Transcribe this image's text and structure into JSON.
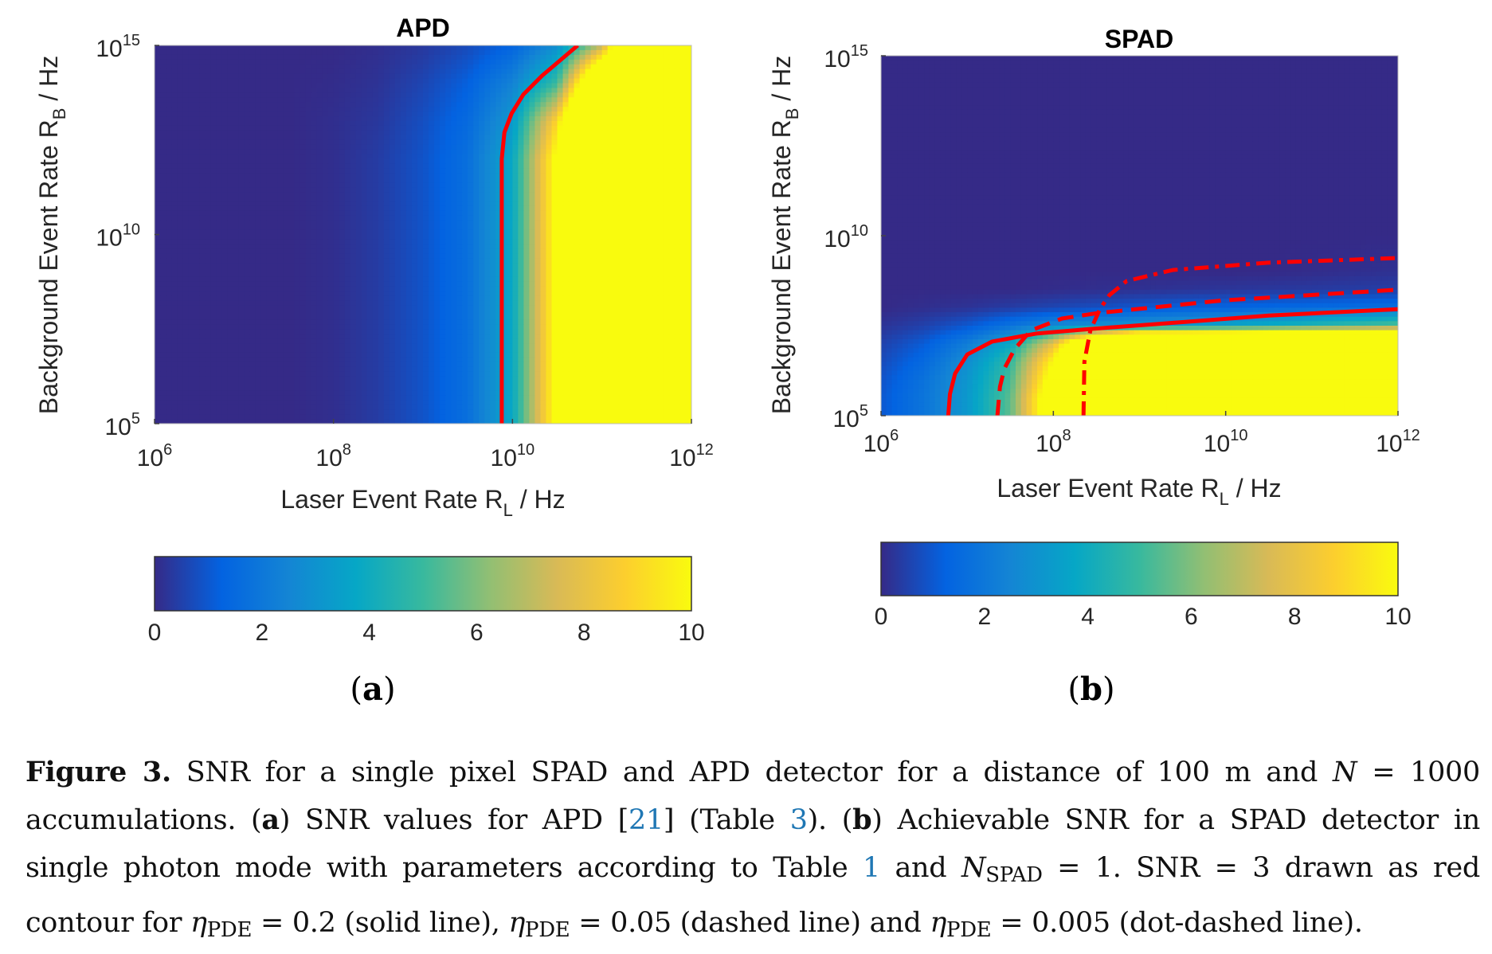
{
  "colormap": [
    "#352A87",
    "#0363E1",
    "#1485D4",
    "#06A7C6",
    "#38B99E",
    "#92BF73",
    "#D9BA56",
    "#FCCE2E",
    "#F9FB0E"
  ],
  "contour_color": "#FF0000",
  "chart_data": [
    {
      "type": "heatmap",
      "title": "APD",
      "panel_label": "a",
      "xlabel": {
        "main": "Laser Event Rate R",
        "sub": "L",
        "tail": " / Hz"
      },
      "ylabel": {
        "main": "Background Event Rate R",
        "sub": "B",
        "tail": " / Hz"
      },
      "x_scale": "log",
      "y_scale": "log",
      "xlim": [
        1000000.0,
        1000000000000.0
      ],
      "ylim": [
        100000.0,
        1000000000000000.0
      ],
      "x_ticks": [
        {
          "base": "10",
          "exp": "6",
          "value": 1000000.0
        },
        {
          "base": "10",
          "exp": "8",
          "value": 100000000.0
        },
        {
          "base": "10",
          "exp": "10",
          "value": 10000000000.0
        },
        {
          "base": "10",
          "exp": "12",
          "value": 1000000000000.0
        }
      ],
      "y_ticks": [
        {
          "base": "10",
          "exp": "5",
          "value": 100000.0
        },
        {
          "base": "10",
          "exp": "10",
          "value": 10000000000.0
        },
        {
          "base": "10",
          "exp": "15",
          "value": 1000000000000000.0
        }
      ],
      "colorbar": {
        "range": [
          0,
          10
        ],
        "ticks": [
          "0",
          "2",
          "4",
          "6",
          "8",
          "10"
        ],
        "placement": "bottom"
      },
      "grid_x": [
        1000000.0,
        3160000.0,
        10000000.0,
        31600000.0,
        100000000.0,
        316000000.0,
        1000000000.0,
        3160000000.0,
        10000000000.0,
        31600000000.0,
        100000000000.0,
        316000000000.0,
        1000000000000.0
      ],
      "grid_y": [
        100000.0,
        1000000.0,
        10000000.0,
        100000000.0,
        1000000000.0,
        10000000000.0,
        100000000000.0,
        1000000000000.0,
        10000000000000.0,
        100000000000000.0,
        1000000000000000.0
      ],
      "snr": [
        [
          0,
          0,
          0,
          0,
          0.1,
          0.4,
          0.9,
          1.7,
          3.8,
          10.5,
          20,
          20,
          20
        ],
        [
          0,
          0,
          0,
          0,
          0.1,
          0.4,
          0.9,
          1.7,
          3.8,
          10.5,
          20,
          20,
          20
        ],
        [
          0,
          0,
          0,
          0,
          0.1,
          0.4,
          0.9,
          1.7,
          3.8,
          10.5,
          20,
          20,
          20
        ],
        [
          0,
          0,
          0,
          0,
          0.1,
          0.4,
          0.9,
          1.7,
          3.8,
          10.5,
          20,
          20,
          20
        ],
        [
          0,
          0,
          0,
          0,
          0.1,
          0.4,
          0.9,
          1.7,
          3.8,
          10.5,
          20,
          20,
          20
        ],
        [
          0,
          0,
          0,
          0,
          0.1,
          0.4,
          0.9,
          1.7,
          3.8,
          10.5,
          20,
          20,
          20
        ],
        [
          0,
          0,
          0,
          0,
          0.1,
          0.4,
          0.9,
          1.7,
          3.8,
          10.5,
          20,
          20,
          20
        ],
        [
          0,
          0,
          0,
          0,
          0.1,
          0.4,
          0.9,
          1.7,
          3.8,
          10.5,
          20,
          20,
          20
        ],
        [
          0,
          0,
          0,
          0,
          0.1,
          0.3,
          0.8,
          1.5,
          3.2,
          9,
          20,
          20,
          20
        ],
        [
          0,
          0,
          0,
          0,
          0.05,
          0.2,
          0.6,
          1.2,
          2.4,
          5,
          15,
          20,
          20
        ],
        [
          0,
          0,
          0,
          0,
          0,
          0.1,
          0.3,
          0.7,
          1.3,
          2.8,
          7,
          20,
          20
        ]
      ],
      "contours": [
        {
          "level": 3,
          "style": "solid",
          "points": [
            [
              7590000000.0,
              100000.0
            ],
            [
              7590000000.0,
              1000000000000.0
            ],
            [
              8130000000.0,
              5010000000000.0
            ],
            [
              9770000000.0,
              15800000000000.0
            ],
            [
              13200000000.0,
              50100000000000.0
            ],
            [
              21400000000.0,
              158000000000000.0
            ],
            [
              53700000000.0,
              1000000000000000.0
            ]
          ]
        }
      ]
    },
    {
      "type": "heatmap",
      "title": "SPAD",
      "panel_label": "b",
      "xlabel": {
        "main": "Laser Event Rate R",
        "sub": "L",
        "tail": " / Hz"
      },
      "ylabel": {
        "main": "Background Event Rate R",
        "sub": "B",
        "tail": " / Hz"
      },
      "x_scale": "log",
      "y_scale": "log",
      "xlim": [
        1000000.0,
        1000000000000.0
      ],
      "ylim": [
        100000.0,
        1000000000000000.0
      ],
      "x_ticks": [
        {
          "base": "10",
          "exp": "6",
          "value": 1000000.0
        },
        {
          "base": "10",
          "exp": "8",
          "value": 100000000.0
        },
        {
          "base": "10",
          "exp": "10",
          "value": 10000000000.0
        },
        {
          "base": "10",
          "exp": "12",
          "value": 1000000000000.0
        }
      ],
      "y_ticks": [
        {
          "base": "10",
          "exp": "5",
          "value": 100000.0
        },
        {
          "base": "10",
          "exp": "10",
          "value": 10000000000.0
        },
        {
          "base": "10",
          "exp": "15",
          "value": 1000000000000000.0
        }
      ],
      "colorbar": {
        "range": [
          0,
          10
        ],
        "ticks": [
          "0",
          "2",
          "4",
          "6",
          "8",
          "10"
        ],
        "placement": "bottom"
      },
      "grid_x": [
        1000000.0,
        3160000.0,
        10000000.0,
        31600000.0,
        100000000.0,
        316000000.0,
        1000000000.0,
        3160000000.0,
        10000000000.0,
        31600000000.0,
        100000000000.0,
        316000000000.0,
        1000000000000.0
      ],
      "grid_y": [
        100000.0,
        316000.0,
        1000000.0,
        3160000.0,
        10000000.0,
        31600000.0,
        100000000.0,
        316000000.0,
        1000000000.0,
        10000000000.0,
        1000000000000000.0
      ],
      "snr": [
        [
          1,
          1.9,
          3.2,
          5.5,
          12,
          20,
          20,
          20,
          20,
          20,
          20,
          20,
          20
        ],
        [
          1,
          1.9,
          3.2,
          5.5,
          12,
          20,
          20,
          20,
          20,
          20,
          20,
          20,
          20
        ],
        [
          0.9,
          1.8,
          3.1,
          5.2,
          11,
          20,
          20,
          20,
          20,
          20,
          20,
          20,
          20
        ],
        [
          0.7,
          1.5,
          2.8,
          4.8,
          10,
          20,
          20,
          20,
          20,
          20,
          20,
          20,
          20
        ],
        [
          0.5,
          1.1,
          2.2,
          3.8,
          8,
          15,
          20,
          20,
          20,
          20,
          20,
          20,
          20
        ],
        [
          0.2,
          0.5,
          1,
          1.8,
          2.6,
          2.9,
          3.1,
          3.3,
          3.6,
          4,
          4.5,
          5,
          5.5
        ],
        [
          0,
          0.1,
          0.2,
          0.4,
          0.6,
          0.8,
          1,
          1.2,
          1.3,
          1.4,
          1.5,
          1.6,
          1.7
        ],
        [
          0,
          0,
          0,
          0,
          0.05,
          0.1,
          0.15,
          0.2,
          0.25,
          0.3,
          0.35,
          0.4,
          0.45
        ],
        [
          0,
          0,
          0,
          0,
          0,
          0,
          0,
          0,
          0,
          0,
          0.05,
          0.1,
          0.15
        ],
        [
          0,
          0,
          0,
          0,
          0,
          0,
          0,
          0,
          0,
          0,
          0,
          0,
          0
        ],
        [
          0,
          0,
          0,
          0,
          0,
          0,
          0,
          0,
          0,
          0,
          0,
          0,
          0
        ]
      ],
      "contours": [
        {
          "level": 3,
          "style": "solid",
          "eta_pde": "0.2",
          "points": [
            [
              6030000.0,
              100000.0
            ],
            [
              6310000.0,
              398000.0
            ],
            [
              7240000.0,
              1480000.0
            ],
            [
              10000000.0,
              5010000.0
            ],
            [
              19500000.0,
              11500000.0
            ],
            [
              63100000.0,
              19100000.0
            ],
            [
              269000000.0,
              25700000.0
            ],
            [
              3160000000.0,
              39800000.0
            ],
            [
              31600000000.0,
              60300000.0
            ],
            [
              1000000000000.0,
              91200000.0
            ]
          ]
        },
        {
          "level": 3,
          "style": "dashed",
          "eta_pde": "0.05",
          "points": [
            [
              22400000.0,
              100000.0
            ],
            [
              24000000.0,
              631000.0
            ],
            [
              26900000.0,
              2000000.0
            ],
            [
              35500000.0,
              7080000.0
            ],
            [
              55000000.0,
              23400000.0
            ],
            [
              126000000.0,
              50100000.0
            ],
            [
              324000000.0,
              70800000.0
            ],
            [
              8910000000.0,
              158000000.0
            ],
            [
              1000000000000.0,
              316000000.0
            ]
          ]
        },
        {
          "level": 3,
          "style": "dot-dashed",
          "eta_pde": "0.005",
          "points": [
            [
              224000000.0,
              100000.0
            ],
            [
              229000000.0,
              3160000.0
            ],
            [
              269000000.0,
              23400000.0
            ],
            [
              347000000.0,
              91200000.0
            ],
            [
              447000000.0,
              224000000.0
            ],
            [
              708000000.0,
              550000000.0
            ],
            [
              2450000000.0,
              1120000000.0
            ],
            [
              30900000000.0,
              1780000000.0
            ],
            [
              1000000000000.0,
              2400000000.0
            ]
          ]
        }
      ]
    }
  ],
  "caption": {
    "l1": [
      "Figure 3.",
      " SNR for a single pixel SPAD and APD detector for a distance of 100 m and ",
      "N",
      " = 1000"
    ],
    "l2": [
      "accumulations. (",
      "a",
      ") SNR values for APD [",
      "21",
      "] (Table ",
      "3",
      "). (",
      "b",
      ") Achievable SNR for a SPAD detector in"
    ],
    "l3": [
      "single photon mode with parameters according to Table ",
      "1",
      " and ",
      "N",
      "SPAD",
      " = 1. SNR = 3 drawn as red"
    ],
    "l4": [
      "contour for ",
      "η",
      "PDE",
      " = 0.2 (solid line), ",
      "η",
      "PDE",
      " = 0.05 (dashed line) and ",
      "η",
      "PDE",
      " = 0.005 (dot-dashed line)."
    ]
  }
}
